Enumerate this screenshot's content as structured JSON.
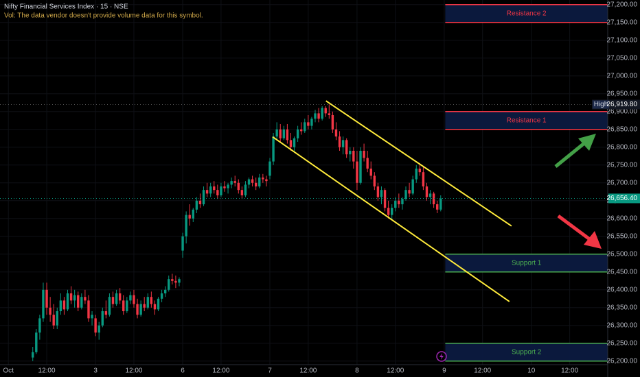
{
  "chart_data": {
    "type": "candlestick",
    "title": "Nifty Financial Services Index · 15 · NSE",
    "subtitle": "Vol: The data vendor doesn't provide volume data for this symbol.",
    "up_color": "#089981",
    "down_color": "#f23645",
    "grid": true,
    "xlim": [
      -2.4,
      171.9
    ],
    "ylim": [
      26190,
      27213
    ],
    "xticks": [
      {
        "value": 0,
        "label": "Oct"
      },
      {
        "value": 11,
        "label": "12:00"
      },
      {
        "value": 25,
        "label": "3"
      },
      {
        "value": 36,
        "label": "12:00"
      },
      {
        "value": 50,
        "label": "6"
      },
      {
        "value": 61,
        "label": "12:00"
      },
      {
        "value": 75,
        "label": "7"
      },
      {
        "value": 86,
        "label": "12:00"
      },
      {
        "value": 100,
        "label": "8"
      },
      {
        "value": 111,
        "label": "12:00"
      },
      {
        "value": 125,
        "label": "9"
      },
      {
        "value": 136,
        "label": "12:00"
      },
      {
        "value": 150,
        "label": "10"
      },
      {
        "value": 161,
        "label": "12:00"
      }
    ],
    "yticks": [
      {
        "value": 26200,
        "label": "26,200.00"
      },
      {
        "value": 26250,
        "label": "26,250.00"
      },
      {
        "value": 26300,
        "label": "26,300.00"
      },
      {
        "value": 26350,
        "label": "26,350.00"
      },
      {
        "value": 26400,
        "label": "26,400.00"
      },
      {
        "value": 26450,
        "label": "26,450.00"
      },
      {
        "value": 26500,
        "label": "26,500.00"
      },
      {
        "value": 26550,
        "label": "26,550.00"
      },
      {
        "value": 26600,
        "label": "26,600.00"
      },
      {
        "value": 26650,
        "label": "26,650.00"
      },
      {
        "value": 26700,
        "label": "26,700.00"
      },
      {
        "value": 26750,
        "label": "26,750.00"
      },
      {
        "value": 26800,
        "label": "26,800.00"
      },
      {
        "value": 26850,
        "label": "26,850.00"
      },
      {
        "value": 26900,
        "label": "26,900.00"
      },
      {
        "value": 26950,
        "label": "26,950.00"
      },
      {
        "value": 27000,
        "label": "27,000.00"
      },
      {
        "value": 27050,
        "label": "27,050.00"
      },
      {
        "value": 27100,
        "label": "27,100.00"
      },
      {
        "value": 27150,
        "label": "27,150.00"
      },
      {
        "value": 27200,
        "label": "27,200.00"
      }
    ],
    "x": [
      7,
      8,
      9,
      10,
      11,
      12,
      13,
      14,
      15,
      16,
      17,
      18,
      19,
      20,
      21,
      22,
      23,
      24,
      25,
      26,
      27,
      28,
      29,
      30,
      31,
      32,
      33,
      34,
      35,
      36,
      37,
      38,
      39,
      40,
      41,
      42,
      43,
      44,
      45,
      46,
      47,
      48,
      49,
      50,
      51,
      52,
      53,
      54,
      55,
      56,
      57,
      58,
      59,
      60,
      61,
      62,
      63,
      64,
      65,
      66,
      67,
      68,
      69,
      70,
      71,
      72,
      73,
      74,
      75,
      76,
      77,
      78,
      79,
      80,
      81,
      82,
      83,
      84,
      85,
      86,
      87,
      88,
      89,
      90,
      91,
      92,
      93,
      94,
      95,
      96,
      97,
      98,
      99,
      100,
      101,
      102,
      103,
      104,
      105,
      106,
      107,
      108,
      109,
      110,
      111,
      112,
      113,
      114,
      115,
      116,
      117,
      118,
      119,
      120,
      121,
      122,
      123,
      124
    ],
    "ohlc": [
      [
        26210,
        26240,
        26200,
        26225
      ],
      [
        26225,
        26290,
        26220,
        26280
      ],
      [
        26280,
        26330,
        26260,
        26320
      ],
      [
        26320,
        26420,
        26310,
        26400
      ],
      [
        26400,
        26420,
        26330,
        26350
      ],
      [
        26350,
        26380,
        26310,
        26330
      ],
      [
        26330,
        26360,
        26290,
        26300
      ],
      [
        26300,
        26350,
        26290,
        26340
      ],
      [
        26340,
        26390,
        26330,
        26370
      ],
      [
        26370,
        26380,
        26330,
        26345
      ],
      [
        26345,
        26400,
        26340,
        26390
      ],
      [
        26390,
        26410,
        26360,
        26370
      ],
      [
        26370,
        26400,
        26350,
        26385
      ],
      [
        26385,
        26395,
        26340,
        26350
      ],
      [
        26350,
        26390,
        26345,
        26380
      ],
      [
        26380,
        26400,
        26360,
        26370
      ],
      [
        26370,
        26385,
        26310,
        26320
      ],
      [
        26320,
        26340,
        26300,
        26330
      ],
      [
        26320,
        26330,
        26270,
        26280
      ],
      [
        26280,
        26310,
        26260,
        26300
      ],
      [
        26300,
        26350,
        26295,
        26340
      ],
      [
        26340,
        26370,
        26320,
        26330
      ],
      [
        26330,
        26390,
        26325,
        26380
      ],
      [
        26380,
        26395,
        26350,
        26360
      ],
      [
        26360,
        26400,
        26355,
        26390
      ],
      [
        26390,
        26405,
        26360,
        26370
      ],
      [
        26370,
        26385,
        26330,
        26340
      ],
      [
        26340,
        26380,
        26335,
        26370
      ],
      [
        26370,
        26395,
        26360,
        26385
      ],
      [
        26385,
        26400,
        26350,
        26360
      ],
      [
        26360,
        26375,
        26320,
        26330
      ],
      [
        26330,
        26370,
        26325,
        26360
      ],
      [
        26360,
        26380,
        26340,
        26350
      ],
      [
        26350,
        26390,
        26345,
        26380
      ],
      [
        26380,
        26395,
        26350,
        26360
      ],
      [
        26360,
        26370,
        26330,
        26345
      ],
      [
        26345,
        26380,
        26340,
        26375
      ],
      [
        26375,
        26400,
        26365,
        26390
      ],
      [
        26390,
        26410,
        26380,
        26400
      ],
      [
        26400,
        26440,
        26395,
        26430
      ],
      [
        26430,
        26445,
        26415,
        26425
      ],
      [
        26425,
        26440,
        26405,
        26420
      ],
      [
        26420,
        26435,
        26410,
        26430
      ],
      [
        26510,
        26560,
        26490,
        26550
      ],
      [
        26550,
        26620,
        26530,
        26610
      ],
      [
        26610,
        26640,
        26580,
        26600
      ],
      [
        26600,
        26630,
        26590,
        26625
      ],
      [
        26625,
        26660,
        26615,
        26650
      ],
      [
        26650,
        26670,
        26630,
        26640
      ],
      [
        26640,
        26690,
        26635,
        26680
      ],
      [
        26680,
        26700,
        26660,
        26670
      ],
      [
        26670,
        26700,
        26660,
        26690
      ],
      [
        26690,
        26705,
        26670,
        26680
      ],
      [
        26680,
        26695,
        26655,
        26665
      ],
      [
        26665,
        26700,
        26660,
        26690
      ],
      [
        26690,
        26705,
        26675,
        26685
      ],
      [
        26685,
        26700,
        26670,
        26695
      ],
      [
        26695,
        26715,
        26685,
        26705
      ],
      [
        26705,
        26720,
        26690,
        26700
      ],
      [
        26700,
        26710,
        26670,
        26680
      ],
      [
        26680,
        26690,
        26655,
        26665
      ],
      [
        26665,
        26705,
        26660,
        26695
      ],
      [
        26695,
        26715,
        26685,
        26710
      ],
      [
        26710,
        26720,
        26690,
        26700
      ],
      [
        26700,
        26715,
        26680,
        26690
      ],
      [
        26690,
        26725,
        26685,
        26715
      ],
      [
        26715,
        26725,
        26700,
        26710
      ],
      [
        26710,
        26720,
        26690,
        26705
      ],
      [
        26720,
        26770,
        26710,
        26760
      ],
      [
        26760,
        26840,
        26750,
        26830
      ],
      [
        26830,
        26870,
        26820,
        26850
      ],
      [
        26850,
        26865,
        26815,
        26825
      ],
      [
        26825,
        26860,
        26820,
        26850
      ],
      [
        26850,
        26865,
        26810,
        26820
      ],
      [
        26820,
        26840,
        26790,
        26800
      ],
      [
        26800,
        26830,
        26785,
        26825
      ],
      [
        26825,
        26860,
        26815,
        26850
      ],
      [
        26850,
        26870,
        26835,
        26845
      ],
      [
        26845,
        26880,
        26840,
        26870
      ],
      [
        26870,
        26890,
        26850,
        26860
      ],
      [
        26860,
        26885,
        26850,
        26880
      ],
      [
        26880,
        26905,
        26870,
        26895
      ],
      [
        26895,
        26910,
        26870,
        26880
      ],
      [
        26880,
        26915,
        26875,
        26910
      ],
      [
        26910,
        26915,
        26885,
        26895
      ],
      [
        26895,
        26919.8,
        26880,
        26890
      ],
      [
        26890,
        26900,
        26840,
        26850
      ],
      [
        26850,
        26870,
        26820,
        26830
      ],
      [
        26830,
        26845,
        26790,
        26800
      ],
      [
        26800,
        26830,
        26780,
        26820
      ],
      [
        26820,
        26825,
        26770,
        26780
      ],
      [
        26780,
        26800,
        26760,
        26790
      ],
      [
        26790,
        26800,
        26740,
        26760
      ],
      [
        26760,
        26790,
        26680,
        26700
      ],
      [
        26700,
        26800,
        26695,
        26790
      ],
      [
        26790,
        26810,
        26760,
        26770
      ],
      [
        26770,
        26790,
        26730,
        26740
      ],
      [
        26740,
        26760,
        26710,
        26720
      ],
      [
        26720,
        26730,
        26680,
        26690
      ],
      [
        26690,
        26700,
        26650,
        26660
      ],
      [
        26660,
        26690,
        26640,
        26680
      ],
      [
        26680,
        26685,
        26620,
        26630
      ],
      [
        26630,
        26650,
        26600,
        26610
      ],
      [
        26610,
        26640,
        26595,
        26630
      ],
      [
        26630,
        26660,
        26620,
        26650
      ],
      [
        26650,
        26670,
        26630,
        26640
      ],
      [
        26640,
        26660,
        26625,
        26655
      ],
      [
        26655,
        26690,
        26650,
        26680
      ],
      [
        26680,
        26700,
        26660,
        26670
      ],
      [
        26670,
        26720,
        26665,
        26710
      ],
      [
        26710,
        26750,
        26700,
        26740
      ],
      [
        26740,
        26755,
        26720,
        26730
      ],
      [
        26730,
        26745,
        26680,
        26690
      ],
      [
        26690,
        26700,
        26650,
        26660
      ],
      [
        26660,
        26680,
        26640,
        26670
      ],
      [
        26670,
        26675,
        26630,
        26640
      ],
      [
        26640,
        26650,
        26615,
        26625
      ],
      [
        26625,
        26665,
        26620,
        26656.4
      ]
    ],
    "channel": {
      "color": "#ffeb3b",
      "lines": [
        {
          "x": [
            91.1,
            144.3
          ],
          "y": [
            26930,
            26579
          ]
        },
        {
          "x": [
            75.8,
            143.7
          ],
          "y": [
            26829,
            26367
          ]
        }
      ]
    },
    "zones": [
      {
        "label": "Resistance 2",
        "ylim": [
          27150,
          27200
        ],
        "color": "#f23645",
        "xstart": 125.3
      },
      {
        "label": "Resistance 1",
        "ylim": [
          26850,
          26900
        ],
        "color": "#f23645",
        "xstart": 125.3
      },
      {
        "label": "Support 1",
        "ylim": [
          26450,
          26500
        ],
        "color": "#4caf50",
        "xstart": 125.3
      },
      {
        "label": "Support 2",
        "ylim": [
          26200,
          26250
        ],
        "color": "#4caf50",
        "xstart": 125.3
      }
    ],
    "high": {
      "label": "High",
      "price": {
        "value": 26919.8,
        "label": "26,919.80"
      }
    },
    "last_price": {
      "value": 26656.4,
      "label": "26,656.40"
    }
  }
}
